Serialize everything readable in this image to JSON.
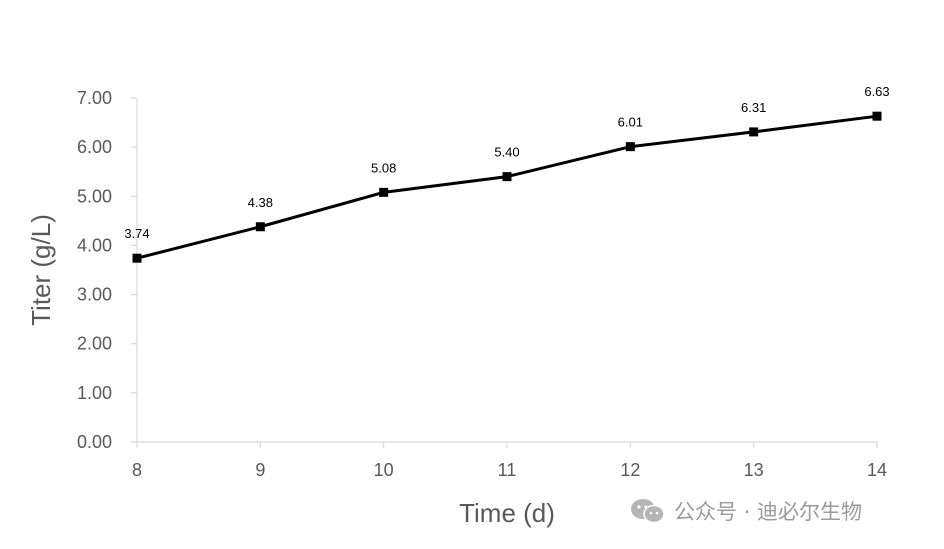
{
  "chart_data": {
    "type": "line",
    "xlabel": "Time (d)",
    "ylabel": "Titer (g/L)",
    "x": [
      8,
      9,
      10,
      11,
      12,
      13,
      14
    ],
    "xlim": [
      8,
      14
    ],
    "xticks": [
      "8",
      "9",
      "10",
      "11",
      "12",
      "13",
      "14"
    ],
    "ylim": [
      0,
      7
    ],
    "yticks": [
      "0.00",
      "1.00",
      "2.00",
      "3.00",
      "4.00",
      "5.00",
      "6.00",
      "7.00"
    ],
    "series": [
      {
        "values": [
          3.74,
          4.38,
          5.08,
          5.4,
          6.01,
          6.31,
          6.63
        ],
        "labels": [
          "3.74",
          "4.38",
          "5.08",
          "5.40",
          "6.01",
          "6.31",
          "6.63"
        ],
        "color": "#000000",
        "marker": "square"
      }
    ],
    "grid": false,
    "axis_color": "#d9d9d9"
  },
  "watermark": {
    "icon": "wechat-icon",
    "text": "公众号 · 迪必尔生物"
  }
}
